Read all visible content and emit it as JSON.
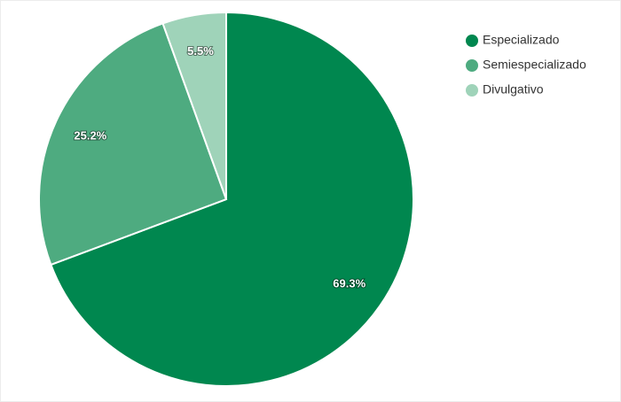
{
  "chart_data": {
    "type": "pie",
    "categories": [
      "Especializado",
      "Semiespecializado",
      "Divulgativo"
    ],
    "values": [
      69.3,
      25.2,
      5.5
    ],
    "value_labels": [
      "69.3%",
      "25.2%",
      "5.5%"
    ],
    "colors": [
      "#00874f",
      "#4eab80",
      "#9fd3b9"
    ],
    "legend": "top-right"
  }
}
